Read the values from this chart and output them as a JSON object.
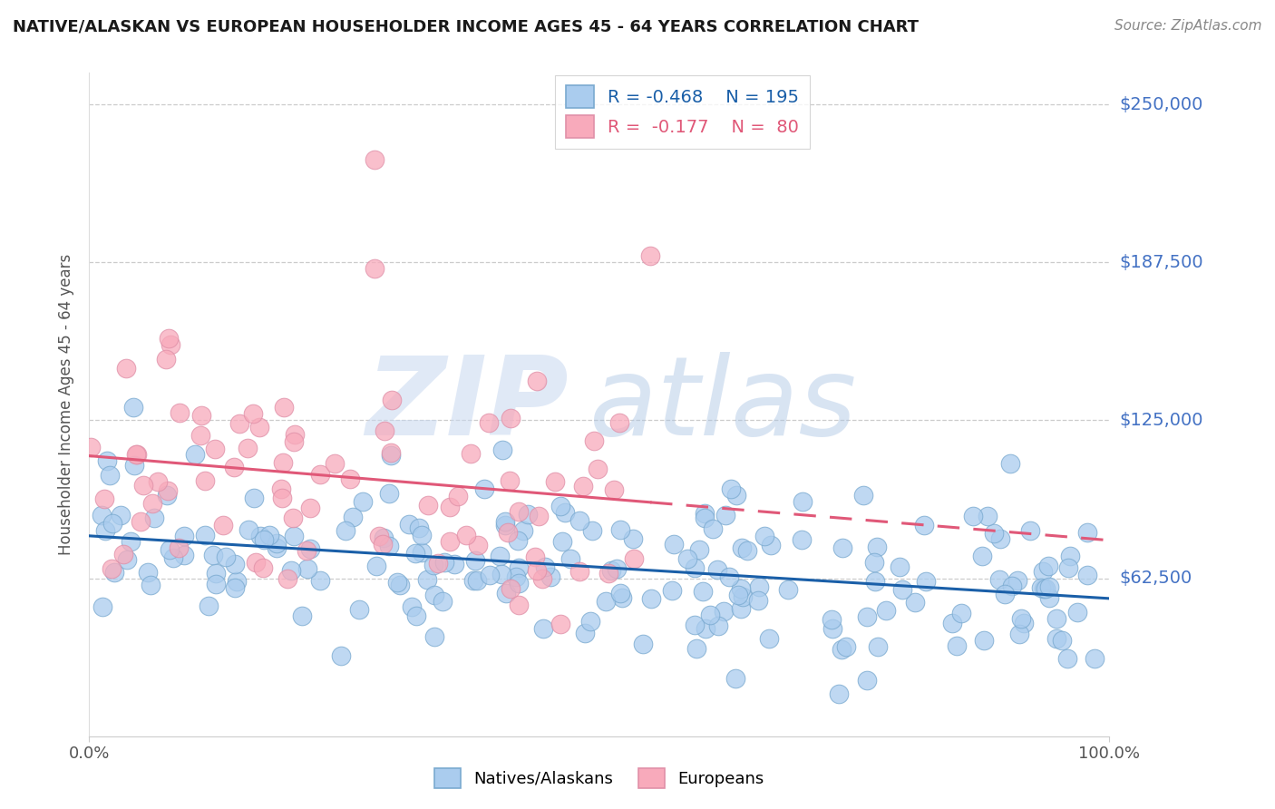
{
  "title": "NATIVE/ALASKAN VS EUROPEAN HOUSEHOLDER INCOME AGES 45 - 64 YEARS CORRELATION CHART",
  "source": "Source: ZipAtlas.com",
  "ylabel": "Householder Income Ages 45 - 64 years",
  "xlim": [
    0,
    100
  ],
  "ylim": [
    0,
    262500
  ],
  "ytick_vals": [
    62500,
    125000,
    187500,
    250000
  ],
  "ytick_labels": [
    "$62,500",
    "$125,000",
    "$187,500",
    "$250,000"
  ],
  "xtick_vals": [
    0,
    100
  ],
  "xtick_labels": [
    "0.0%",
    "100.0%"
  ],
  "blue_scatter_color": "#aaccee",
  "pink_scatter_color": "#f8aabb",
  "blue_line_color": "#1a5fa8",
  "pink_line_color": "#e05878",
  "ytick_color": "#4472c4",
  "title_color": "#1a1a1a",
  "source_color": "#888888",
  "r_blue": -0.468,
  "n_blue": 195,
  "r_pink": -0.177,
  "n_pink": 80,
  "seed": 12
}
